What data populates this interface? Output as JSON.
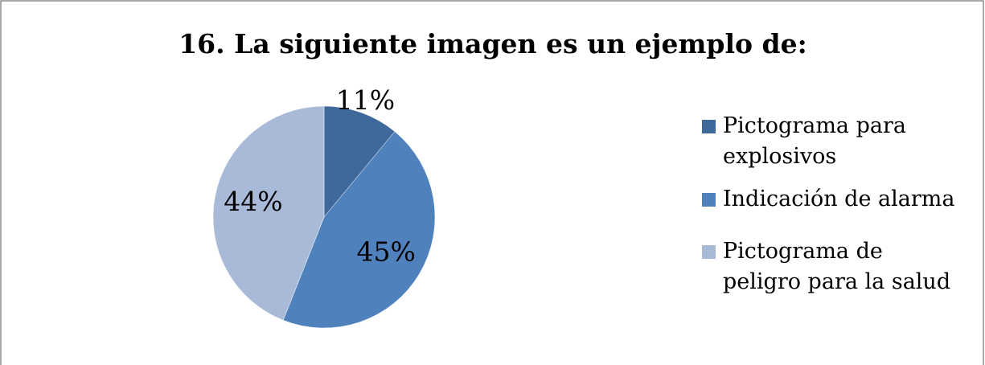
{
  "chart_data": {
    "type": "pie",
    "title": "16. La siguiente imagen es un ejemplo de:",
    "categories": [
      "Pictograma para explosivos",
      "Indicación de alarma",
      "Pictograma de peligro para la salud"
    ],
    "values": [
      11,
      45,
      44
    ],
    "value_labels": [
      "11%",
      "45%",
      "44%"
    ],
    "colors": [
      "#3f689b",
      "#4f81bd",
      "#a9b9d8"
    ],
    "legend": "right"
  }
}
